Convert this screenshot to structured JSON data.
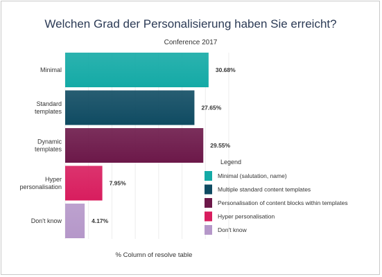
{
  "chart_data": {
    "type": "bar",
    "orientation": "horizontal",
    "title": "Welchen Grad der Personalisierung haben Sie erreicht?",
    "subtitle": "Conference 2017",
    "xlabel": "% Column of resolve table",
    "categories": [
      [
        "Minimal"
      ],
      [
        "Standard",
        "templates"
      ],
      [
        "Dynamic",
        "templates"
      ],
      [
        "Hyper",
        "personalisation"
      ],
      [
        "Don't know"
      ]
    ],
    "values": [
      30.68,
      27.65,
      29.55,
      7.95,
      4.17
    ],
    "value_labels": [
      "30.68%",
      "27.65%",
      "29.55%",
      "7.95%",
      "4.17%"
    ],
    "xlim": [
      0,
      35
    ],
    "grid": "vertical",
    "colors": [
      "#14aaa6",
      "#0f4b62",
      "#6c1849",
      "#d81d5e",
      "#b597c9"
    ],
    "legend": {
      "title": "Legend",
      "placement": "bottom-right",
      "entries": [
        "Minimal (salutation, name)",
        "Multiple standard content templates",
        "Personalisation of content blocks within templates",
        "Hyper personalisation",
        "Don't know"
      ]
    }
  }
}
